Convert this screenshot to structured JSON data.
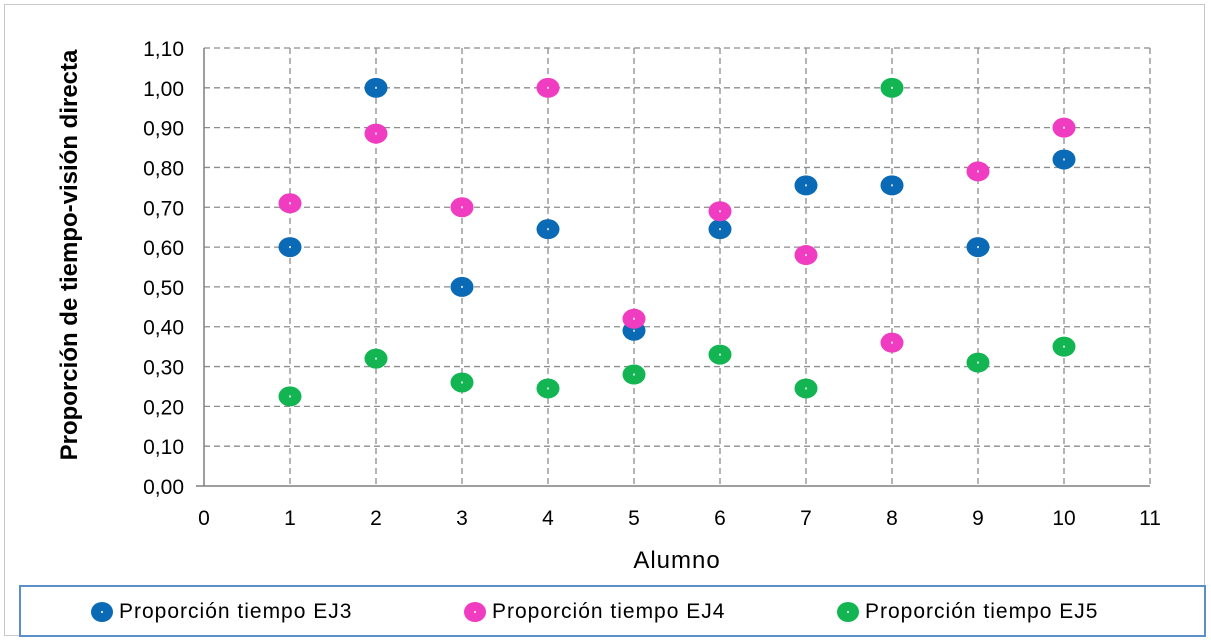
{
  "chart_data": {
    "type": "scatter",
    "title": "",
    "xlabel": "Alumno",
    "ylabel": "Proporción de tiempo-visión directa",
    "xlim": [
      0,
      11
    ],
    "ylim": [
      0,
      1.1
    ],
    "x_ticks": [
      "0",
      "1",
      "2",
      "3",
      "4",
      "5",
      "6",
      "7",
      "8",
      "9",
      "10",
      "11"
    ],
    "y_ticks": [
      "0,00",
      "0,10",
      "0,20",
      "0,30",
      "0,40",
      "0,50",
      "0,60",
      "0,70",
      "0,80",
      "0,90",
      "1,00",
      "1,10"
    ],
    "grid": true,
    "legend_position": "bottom",
    "series": [
      {
        "name": "Proporción tiempo EJ3",
        "color": "#0a6ab5",
        "x": [
          1,
          2,
          3,
          4,
          5,
          6,
          7,
          8,
          9,
          10
        ],
        "values": [
          0.6,
          1.0,
          0.5,
          0.645,
          0.39,
          0.645,
          0.755,
          0.755,
          0.6,
          0.82
        ]
      },
      {
        "name": "Proporción tiempo EJ4",
        "color": "#f03cc0",
        "x": [
          1,
          2,
          3,
          4,
          5,
          6,
          7,
          8,
          9,
          10
        ],
        "values": [
          0.71,
          0.885,
          0.7,
          1.0,
          0.42,
          0.69,
          0.58,
          0.36,
          0.79,
          0.9
        ]
      },
      {
        "name": "Proporción tiempo EJ5",
        "color": "#12b552",
        "x": [
          1,
          2,
          3,
          4,
          5,
          6,
          7,
          8,
          9,
          10
        ],
        "values": [
          0.225,
          0.32,
          0.26,
          0.245,
          0.28,
          0.33,
          0.245,
          1.0,
          0.31,
          0.35
        ]
      }
    ]
  }
}
